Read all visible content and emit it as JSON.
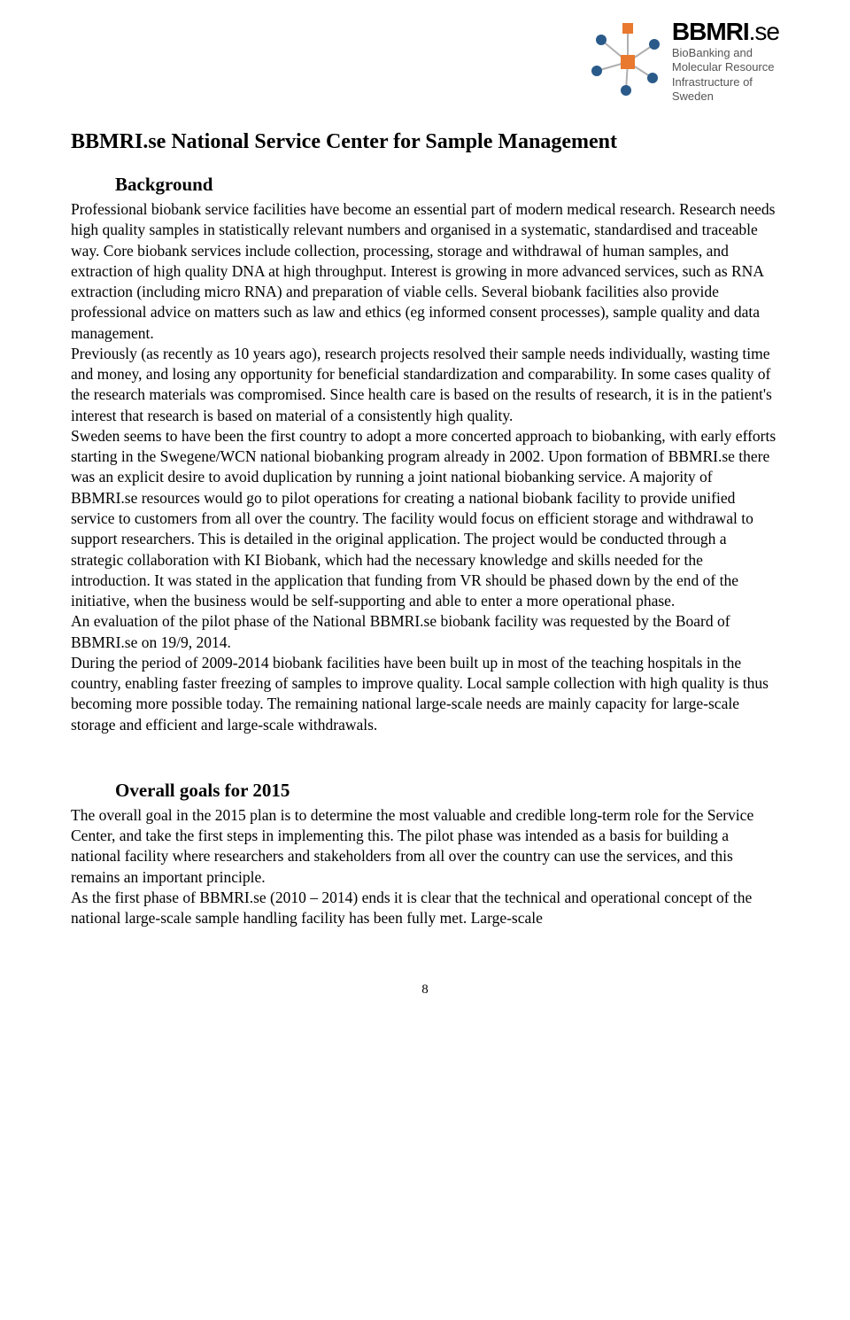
{
  "logo": {
    "title_bold": "BBMRI",
    "title_suffix": ".se",
    "sub1": "BioBanking and",
    "sub2": "Molecular Resource",
    "sub3": "Infrastructure of",
    "sub4": "Sweden",
    "colors": {
      "orange": "#e8792e",
      "blue": "#2a5a8a",
      "line": "#b0b0b0"
    }
  },
  "title": "BBMRI.se National Service Center for Sample Management",
  "sections": {
    "background": {
      "heading": "Background",
      "para": "Professional biobank service facilities have become an essential part of modern medical research. Research needs high quality samples in statistically relevant numbers and organised in a systematic, standardised and traceable way. Core biobank services include collection, processing, storage and withdrawal of human samples, and extraction of high quality DNA at high throughput. Interest is growing in more advanced services, such as RNA extraction (including micro RNA) and preparation of viable cells. Several biobank facilities also provide professional advice on matters such as law and ethics (eg informed consent processes), sample quality and data management.\nPreviously (as recently as 10 years ago), research projects resolved their sample needs individually, wasting time and money, and losing any opportunity for beneficial standardization and comparability. In some cases quality of the research materials was compromised. Since health care is based on the results of research, it is in the patient's interest that research is based on material of a consistently high quality.\nSweden seems to have been the first country to adopt a more concerted approach to biobanking, with early efforts starting in the Swegene/WCN national biobanking program already in 2002. Upon formation of BBMRI.se there was an explicit desire to avoid duplication by running a joint national biobanking service. A majority of BBMRI.se resources would go to pilot operations for creating a national biobank facility to provide unified service to customers from all over the country. The facility would focus on efficient storage and withdrawal to support researchers. This is detailed in the original application. The project would be conducted through a strategic collaboration with KI Biobank, which had the necessary knowledge and skills needed for the introduction. It was stated in the application that funding from VR should be phased down by the end of the initiative, when the business would be self-supporting and able to enter a more operational phase.\nAn evaluation of the pilot phase of the National BBMRI.se biobank facility was requested by the Board of BBMRI.se on 19/9, 2014.\nDuring the period of 2009-2014 biobank facilities have been built up in most of the teaching hospitals in the country, enabling faster freezing of samples to improve quality. Local sample collection with high quality is thus becoming more possible today. The remaining national large-scale needs are mainly capacity for large-scale storage and efficient and large-scale withdrawals."
    },
    "goals": {
      "heading": "Overall goals for 2015",
      "para": "The overall goal in the 2015 plan is to determine the most valuable and credible long-term role for the Service Center, and take the first steps in implementing this. The pilot phase was intended as a basis for building a national facility where researchers and stakeholders from all over the country can use the services, and this remains an important principle.\nAs the first phase of BBMRI.se (2010 – 2014) ends it is clear that the technical and operational concept of the national large-scale sample handling facility has been fully met. Large-scale"
    }
  },
  "page_number": "8"
}
